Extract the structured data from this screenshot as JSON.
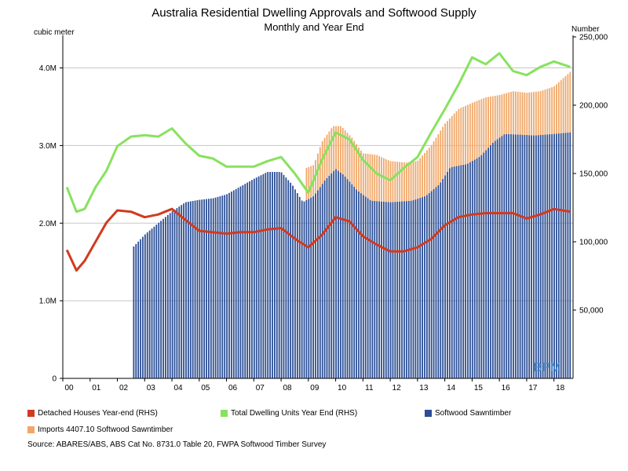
{
  "chart_data": {
    "type": "bar+line",
    "title": "Australia Residential Dwelling Approvals and Softwood Supply",
    "subtitle": "Monthly and Year End",
    "ylabel_left": "cubic meter",
    "ylabel_right": "Number",
    "y_left": {
      "min": 0,
      "max": 4400000,
      "ticks": [
        0,
        1000000,
        2000000,
        3000000,
        4000000
      ],
      "tick_labels": [
        "0",
        "1.0M",
        "2.0M",
        "3.0M",
        "4.0M"
      ]
    },
    "y_right": {
      "min": 0,
      "max": 250000,
      "ticks": [
        50000,
        100000,
        150000,
        200000,
        250000
      ],
      "tick_labels": [
        "50,000",
        "100,000",
        "150,000",
        "200,000",
        "250,000"
      ]
    },
    "x_range": [
      2000.0,
      2018.7
    ],
    "x_ticks": [
      {
        "year": 2000.0,
        "label": "00"
      },
      {
        "year": 2001.0,
        "label": "01"
      },
      {
        "year": 2002.0,
        "label": "02"
      },
      {
        "year": 2003.0,
        "label": "03"
      },
      {
        "year": 2004.0,
        "label": "04"
      },
      {
        "year": 2005.0,
        "label": "05"
      },
      {
        "year": 2006.0,
        "label": "06"
      },
      {
        "year": 2007.0,
        "label": "07"
      },
      {
        "year": 2008.0,
        "label": "08"
      },
      {
        "year": 2009.0,
        "label": "09"
      },
      {
        "year": 2010.0,
        "label": "10"
      },
      {
        "year": 2011.0,
        "label": "11"
      },
      {
        "year": 2012.0,
        "label": "12"
      },
      {
        "year": 2013.0,
        "label": "13"
      },
      {
        "year": 2014.0,
        "label": "14"
      },
      {
        "year": 2015.0,
        "label": "15"
      },
      {
        "year": 2016.0,
        "label": "16"
      },
      {
        "year": 2017.0,
        "label": "17"
      },
      {
        "year": 2018.0,
        "label": "18"
      }
    ],
    "bars_start_year": 2002.6,
    "bars_step_year": 0.0833,
    "imports_start_year": 2008.85,
    "softwood_keypoints": [
      [
        2002.6,
        1700000
      ],
      [
        2003.0,
        1850000
      ],
      [
        2003.5,
        2000000
      ],
      [
        2004.0,
        2150000
      ],
      [
        2004.5,
        2270000
      ],
      [
        2005.0,
        2300000
      ],
      [
        2005.5,
        2320000
      ],
      [
        2006.0,
        2370000
      ],
      [
        2006.5,
        2470000
      ],
      [
        2007.0,
        2570000
      ],
      [
        2007.5,
        2660000
      ],
      [
        2008.0,
        2660000
      ],
      [
        2008.4,
        2500000
      ],
      [
        2008.8,
        2270000
      ],
      [
        2009.2,
        2350000
      ],
      [
        2009.6,
        2550000
      ],
      [
        2010.0,
        2700000
      ],
      [
        2010.3,
        2620000
      ],
      [
        2010.8,
        2420000
      ],
      [
        2011.3,
        2290000
      ],
      [
        2012.0,
        2270000
      ],
      [
        2012.8,
        2290000
      ],
      [
        2013.3,
        2350000
      ],
      [
        2013.8,
        2500000
      ],
      [
        2014.2,
        2720000
      ],
      [
        2014.8,
        2760000
      ],
      [
        2015.3,
        2860000
      ],
      [
        2015.8,
        3050000
      ],
      [
        2016.2,
        3150000
      ],
      [
        2016.8,
        3140000
      ],
      [
        2017.3,
        3130000
      ],
      [
        2018.0,
        3150000
      ],
      [
        2018.6,
        3170000
      ]
    ],
    "total_keypoints": [
      [
        2008.85,
        2700000
      ],
      [
        2009.2,
        2750000
      ],
      [
        2009.5,
        3050000
      ],
      [
        2009.9,
        3250000
      ],
      [
        2010.2,
        3250000
      ],
      [
        2010.6,
        3100000
      ],
      [
        2011.0,
        2900000
      ],
      [
        2011.5,
        2880000
      ],
      [
        2012.0,
        2800000
      ],
      [
        2012.6,
        2780000
      ],
      [
        2013.0,
        2800000
      ],
      [
        2013.5,
        3000000
      ],
      [
        2014.0,
        3280000
      ],
      [
        2014.5,
        3470000
      ],
      [
        2015.0,
        3550000
      ],
      [
        2015.5,
        3620000
      ],
      [
        2016.0,
        3650000
      ],
      [
        2016.5,
        3700000
      ],
      [
        2017.0,
        3680000
      ],
      [
        2017.5,
        3700000
      ],
      [
        2018.0,
        3760000
      ],
      [
        2018.6,
        3950000
      ]
    ],
    "series": [
      {
        "name": "Detached Houses Year-end (RHS)",
        "color": "#d13a1f",
        "axis": "right",
        "points": [
          [
            2000.15,
            94000
          ],
          [
            2000.5,
            79000
          ],
          [
            2000.8,
            86000
          ],
          [
            2001.2,
            100000
          ],
          [
            2001.6,
            114000
          ],
          [
            2002.0,
            123000
          ],
          [
            2002.5,
            122000
          ],
          [
            2003.0,
            118000
          ],
          [
            2003.5,
            120000
          ],
          [
            2004.0,
            124000
          ],
          [
            2004.5,
            116000
          ],
          [
            2005.0,
            108000
          ],
          [
            2006.0,
            106000
          ],
          [
            2006.5,
            107000
          ],
          [
            2007.0,
            107000
          ],
          [
            2007.5,
            109000
          ],
          [
            2008.0,
            110000
          ],
          [
            2008.6,
            101000
          ],
          [
            2009.0,
            96000
          ],
          [
            2009.5,
            105000
          ],
          [
            2010.0,
            118000
          ],
          [
            2010.5,
            115000
          ],
          [
            2011.0,
            104000
          ],
          [
            2011.5,
            98000
          ],
          [
            2012.0,
            93000
          ],
          [
            2012.5,
            93000
          ],
          [
            2013.0,
            96000
          ],
          [
            2013.5,
            102000
          ],
          [
            2014.0,
            112000
          ],
          [
            2014.5,
            118000
          ],
          [
            2015.0,
            120000
          ],
          [
            2015.5,
            121000
          ],
          [
            2016.0,
            121000
          ],
          [
            2016.5,
            121000
          ],
          [
            2017.0,
            117000
          ],
          [
            2017.5,
            120000
          ],
          [
            2018.0,
            124000
          ],
          [
            2018.6,
            122000
          ]
        ]
      },
      {
        "name": "Total Dwelling Units Year End (RHS)",
        "color": "#87e25e",
        "axis": "right",
        "points": [
          [
            2000.15,
            140000
          ],
          [
            2000.5,
            122000
          ],
          [
            2000.8,
            124000
          ],
          [
            2001.2,
            140000
          ],
          [
            2001.6,
            152000
          ],
          [
            2002.0,
            170000
          ],
          [
            2002.5,
            177000
          ],
          [
            2003.0,
            178000
          ],
          [
            2003.5,
            177000
          ],
          [
            2004.0,
            183000
          ],
          [
            2004.5,
            172000
          ],
          [
            2005.0,
            163000
          ],
          [
            2005.5,
            161000
          ],
          [
            2006.0,
            155000
          ],
          [
            2006.5,
            155000
          ],
          [
            2007.0,
            155000
          ],
          [
            2007.5,
            159000
          ],
          [
            2008.0,
            162000
          ],
          [
            2008.5,
            150000
          ],
          [
            2009.0,
            136000
          ],
          [
            2009.5,
            160000
          ],
          [
            2010.0,
            180000
          ],
          [
            2010.5,
            175000
          ],
          [
            2011.0,
            160000
          ],
          [
            2011.5,
            150000
          ],
          [
            2012.0,
            145000
          ],
          [
            2012.5,
            154000
          ],
          [
            2013.0,
            162000
          ],
          [
            2013.5,
            180000
          ],
          [
            2014.0,
            197000
          ],
          [
            2014.5,
            215000
          ],
          [
            2015.0,
            235000
          ],
          [
            2015.5,
            230000
          ],
          [
            2016.0,
            238000
          ],
          [
            2016.5,
            225000
          ],
          [
            2017.0,
            222000
          ],
          [
            2017.5,
            228000
          ],
          [
            2018.0,
            232000
          ],
          [
            2018.6,
            228000
          ]
        ]
      },
      {
        "name": "Softwood Sawntimber",
        "color": "#2b4e95",
        "axis": "left",
        "type": "bar"
      },
      {
        "name": "Imports 4407.10 Softwood Sawntimber",
        "color": "#f0a86a",
        "axis": "left",
        "type": "bar"
      }
    ],
    "grid": true
  },
  "legend": [
    {
      "label": "Detached Houses Year-end (RHS)",
      "color": "#d13a1f"
    },
    {
      "label": "Total Dwelling Units Year End (RHS)",
      "color": "#87e25e"
    },
    {
      "label": "Softwood Sawntimber",
      "color": "#2b4e95"
    },
    {
      "label": "Imports 4407.10 Softwood Sawntimber",
      "color": "#f0a86a"
    }
  ],
  "watermark": "BPM",
  "source": "Source: ABARES/ABS, ABS Cat No. 8731.0 Table 20, FWPA Softwood Timber Survey"
}
